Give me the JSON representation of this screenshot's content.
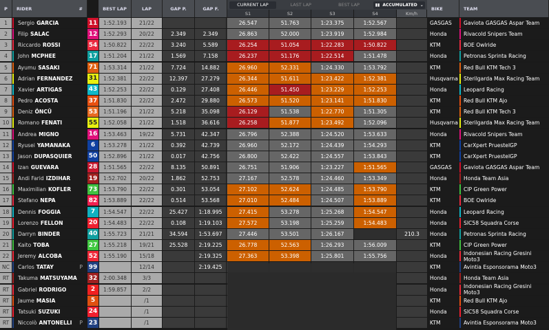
{
  "headers": {
    "p": "P",
    "rider": "RIDER",
    "num": "#",
    "best_lap": "BEST LAP",
    "lap": "LAP",
    "gap_p": "GAP P.",
    "gap_f": "GAP F.",
    "s1": "S1",
    "s2": "S2",
    "s3": "S3",
    "s4": "S4",
    "kmh": "Km/h",
    "bike": "BIKE",
    "team": "TEAM"
  },
  "tabs": {
    "current": "CURRENT LAP",
    "last": "LAST LAP",
    "best": "BEST LAP",
    "mode": "ACCUMULATED",
    "active": "current"
  },
  "sector_colors": {
    "g": "#666666",
    "r": "#a81c1f",
    "o": "#cc6000"
  },
  "rows": [
    {
      "p": "1",
      "first": "Sergio",
      "last": "GARCIA",
      "num": "11",
      "numc": "#d0102a",
      "bl": "1:52.193",
      "lap": "21/22",
      "gp": "",
      "gf": "",
      "s": [
        [
          "26.547",
          "g"
        ],
        [
          "51.763",
          "g"
        ],
        [
          "1:23.375",
          "g"
        ],
        [
          "1:52.567",
          "g"
        ]
      ],
      "kmh": "",
      "bike": "GASGAS",
      "team": "Gaviota GASGAS Aspar Team",
      "tc": "#d0102a"
    },
    {
      "p": "2",
      "first": "Filip",
      "last": "SALAC",
      "num": "12",
      "numc": "#e0107a",
      "bl": "1:52.293",
      "lap": "20/22",
      "gp": "2.349",
      "gf": "2.349",
      "s": [
        [
          "26.863",
          "g"
        ],
        [
          "52.000",
          "g"
        ],
        [
          "1:23.919",
          "g"
        ],
        [
          "1:52.984",
          "g"
        ]
      ],
      "kmh": "",
      "bike": "Honda",
      "team": "Rivacold Snipers Team",
      "tc": "#e0107a"
    },
    {
      "p": "3",
      "first": "Riccardo",
      "last": "ROSSI",
      "num": "54",
      "numc": "#ea2a40",
      "bl": "1:50.822",
      "lap": "22/22",
      "gp": "3.240",
      "gf": "5.589",
      "s": [
        [
          "26.254",
          "r"
        ],
        [
          "51.054",
          "r"
        ],
        [
          "1:22.283",
          "r"
        ],
        [
          "1:50.822",
          "r"
        ]
      ],
      "kmh": "",
      "bike": "KTM",
      "team": "BOE Owlride",
      "tc": "#ea2a40"
    },
    {
      "p": "4",
      "first": "John",
      "last": "MCPHEE",
      "num": "17",
      "numc": "#10a0a0",
      "bl": "1:51.204",
      "lap": "21/22",
      "gp": "1.569",
      "gf": "7.158",
      "s": [
        [
          "26.237",
          "r"
        ],
        [
          "51.176",
          "r"
        ],
        [
          "1:22.514",
          "r"
        ],
        [
          "1:51.478",
          "g"
        ]
      ],
      "kmh": "",
      "bike": "Honda",
      "team": "Petronas Sprinta Racing",
      "tc": "#10a0a0"
    },
    {
      "p": "5",
      "first": "Ayumu",
      "last": "SASAKI",
      "num": "71",
      "numc": "#e06010",
      "bl": "1:53.314",
      "lap": "21/22",
      "gp": "7.724",
      "gf": "14.882",
      "s": [
        [
          "26.960",
          "o"
        ],
        [
          "52.331",
          "o"
        ],
        [
          "1:24.330",
          "g"
        ],
        [
          "1:53.792",
          "g"
        ]
      ],
      "kmh": "",
      "bike": "KTM",
      "team": "Red Bull KTM Tech 3",
      "tc": "#e06010"
    },
    {
      "p": "6",
      "first": "Adrian",
      "last": "FERNANDEZ",
      "num": "31",
      "numc": "#e8f010",
      "bl": "1:52.381",
      "lap": "22/22",
      "gp": "12.397",
      "gf": "27.279",
      "s": [
        [
          "26.344",
          "o"
        ],
        [
          "51.611",
          "o"
        ],
        [
          "1:23.422",
          "o"
        ],
        [
          "1:52.381",
          "o"
        ]
      ],
      "kmh": "",
      "bike": "Husqvarna",
      "team": "Sterilgarda Max Racing Team",
      "tc": "#e8f010"
    },
    {
      "p": "7",
      "first": "Xavier",
      "last": "ARTIGAS",
      "num": "43",
      "numc": "#10b8c8",
      "bl": "1:52.253",
      "lap": "22/22",
      "gp": "0.129",
      "gf": "27.408",
      "s": [
        [
          "26.446",
          "o"
        ],
        [
          "51.450",
          "r"
        ],
        [
          "1:23.229",
          "o"
        ],
        [
          "1:52.253",
          "o"
        ]
      ],
      "kmh": "",
      "bike": "Honda",
      "team": "Leopard Racing",
      "tc": "#10b8c8"
    },
    {
      "p": "8",
      "first": "Pedro",
      "last": "ACOSTA",
      "num": "37",
      "numc": "#e85010",
      "bl": "1:51.830",
      "lap": "22/22",
      "gp": "2.472",
      "gf": "29.880",
      "s": [
        [
          "26.573",
          "o"
        ],
        [
          "51.520",
          "o"
        ],
        [
          "1:23.141",
          "o"
        ],
        [
          "1:51.830",
          "o"
        ]
      ],
      "kmh": "",
      "bike": "KTM",
      "team": "Red Bull KTM Ajo",
      "tc": "#e85010"
    },
    {
      "p": "9",
      "first": "Deniz",
      "last": "ÖNCÜ",
      "num": "53",
      "numc": "#e86a20",
      "bl": "1:51.196",
      "lap": "21/22",
      "gp": "5.218",
      "gf": "35.098",
      "s": [
        [
          "26.129",
          "r"
        ],
        [
          "51.538",
          "g"
        ],
        [
          "1:22.770",
          "o"
        ],
        [
          "1:51.305",
          "g"
        ]
      ],
      "kmh": "",
      "bike": "KTM",
      "team": "Red Bull KTM Tech 3",
      "tc": "#e06010"
    },
    {
      "p": "10",
      "first": "Romano",
      "last": "FENATI",
      "num": "55",
      "numc": "#e8f010",
      "bl": "1:52.058",
      "lap": "21/22",
      "gp": "1.518",
      "gf": "36.616",
      "s": [
        [
          "26.258",
          "r"
        ],
        [
          "51.877",
          "o"
        ],
        [
          "1:23.492",
          "o"
        ],
        [
          "1:52.096",
          "g"
        ]
      ],
      "kmh": "",
      "bike": "Husqvarna",
      "team": "Sterilgarda Max Racing Team",
      "tc": "#e8f010"
    },
    {
      "p": "11",
      "first": "Andrea",
      "last": "MIGNO",
      "num": "16",
      "numc": "#e0107a",
      "bl": "1:53.463",
      "lap": "19/22",
      "gp": "5.731",
      "gf": "42.347",
      "s": [
        [
          "26.796",
          "g"
        ],
        [
          "52.388",
          "g"
        ],
        [
          "1:24.520",
          "g"
        ],
        [
          "1:53.633",
          "g"
        ]
      ],
      "kmh": "",
      "bike": "Honda",
      "team": "Rivacold Snipers Team",
      "tc": "#e0107a"
    },
    {
      "p": "12",
      "first": "Ryusei",
      "last": "YAMANAKA",
      "num": "6",
      "numc": "#1040a0",
      "bl": "1:53.278",
      "lap": "21/22",
      "gp": "0.392",
      "gf": "42.739",
      "s": [
        [
          "26.960",
          "g"
        ],
        [
          "52.172",
          "g"
        ],
        [
          "1:24.439",
          "g"
        ],
        [
          "1:54.293",
          "g"
        ]
      ],
      "kmh": "",
      "bike": "KTM",
      "team": "CarXpert PruestelGP",
      "tc": "#1040a0"
    },
    {
      "p": "13",
      "first": "Jason",
      "last": "DUPASQUIER",
      "num": "50",
      "numc": "#1040a0",
      "bl": "1:52.896",
      "lap": "21/22",
      "gp": "0.017",
      "gf": "42.756",
      "s": [
        [
          "26.800",
          "g"
        ],
        [
          "52.422",
          "g"
        ],
        [
          "1:24.557",
          "g"
        ],
        [
          "1:53.843",
          "g"
        ]
      ],
      "kmh": "",
      "bike": "KTM",
      "team": "CarXpert PruestelGP",
      "tc": "#1040a0"
    },
    {
      "p": "14",
      "first": "Izan",
      "last": "GUEVARA",
      "num": "28",
      "numc": "#c81830",
      "bl": "1:51.565",
      "lap": "22/22",
      "gp": "8.135",
      "gf": "50.891",
      "s": [
        [
          "26.751",
          "g"
        ],
        [
          "51.906",
          "g"
        ],
        [
          "1:23.227",
          "g"
        ],
        [
          "1:51.565",
          "o"
        ]
      ],
      "kmh": "",
      "bike": "GASGAS",
      "team": "Gaviota GASGAS Aspar Team",
      "tc": "#d0102a"
    },
    {
      "p": "15",
      "first": "Andi Farid",
      "last": "IZDIHAR",
      "num": "19",
      "numc": "#a02020",
      "bl": "1:52.702",
      "lap": "20/22",
      "gp": "1.862",
      "gf": "52.753",
      "s": [
        [
          "27.167",
          "g"
        ],
        [
          "52.578",
          "g"
        ],
        [
          "1:24.460",
          "g"
        ],
        [
          "1:53.349",
          "g"
        ]
      ],
      "kmh": "",
      "bike": "Honda",
      "team": "Honda Team Asia",
      "tc": "#a02020"
    },
    {
      "p": "16",
      "first": "Maximilian",
      "last": "KOFLER",
      "num": "73",
      "numc": "#40c040",
      "bl": "1:53.790",
      "lap": "22/22",
      "gp": "0.301",
      "gf": "53.054",
      "s": [
        [
          "27.102",
          "o"
        ],
        [
          "52.624",
          "o"
        ],
        [
          "1:24.485",
          "g"
        ],
        [
          "1:53.790",
          "o"
        ]
      ],
      "kmh": "",
      "bike": "KTM",
      "team": "CIP Green Power",
      "tc": "#40c040"
    },
    {
      "p": "17",
      "first": "Stefano",
      "last": "NEPA",
      "num": "82",
      "numc": "#f02050",
      "bl": "1:53.889",
      "lap": "22/22",
      "gp": "0.514",
      "gf": "53.568",
      "s": [
        [
          "27.010",
          "o"
        ],
        [
          "52.484",
          "o"
        ],
        [
          "1:24.507",
          "g"
        ],
        [
          "1:53.889",
          "o"
        ]
      ],
      "kmh": "",
      "bike": "KTM",
      "team": "BOE Owlride",
      "tc": "#ea2a40"
    },
    {
      "p": "18",
      "first": "Dennis",
      "last": "FOGGIA",
      "num": "7",
      "numc": "#10b0c0",
      "bl": "1:54.547",
      "lap": "22/22",
      "gp": "25.427",
      "gf": "1:18.995",
      "s": [
        [
          "27.415",
          "o"
        ],
        [
          "53.278",
          "g"
        ],
        [
          "1:25.268",
          "g"
        ],
        [
          "1:54.547",
          "o"
        ]
      ],
      "kmh": "",
      "bike": "Honda",
      "team": "Leopard Racing",
      "tc": "#10b8c8"
    },
    {
      "p": "19",
      "first": "Lorenzo",
      "last": "FELLON",
      "num": "20",
      "numc": "#f02030",
      "bl": "1:54.483",
      "lap": "22/22",
      "gp": "0.108",
      "gf": "1:19.103",
      "s": [
        [
          "27.572",
          "o"
        ],
        [
          "53.198",
          "g"
        ],
        [
          "1:25.259",
          "g"
        ],
        [
          "1:54.483",
          "o"
        ]
      ],
      "kmh": "",
      "bike": "Honda",
      "team": "SIC58 Squadra Corse",
      "tc": "#f02030"
    },
    {
      "p": "20",
      "first": "Darryn",
      "last": "BINDER",
      "num": "40",
      "numc": "#10a0a0",
      "bl": "1:55.723",
      "lap": "21/21",
      "gp": "34.594",
      "gf": "1:53.697",
      "s": [
        [
          "27.446",
          "g"
        ],
        [
          "53.501",
          "g"
        ],
        [
          "1:26.167",
          "g"
        ],
        [
          "",
          "e"
        ]
      ],
      "progress": 0.65,
      "kmh": "210.3",
      "bike": "Honda",
      "team": "Petronas Sprinta Racing",
      "tc": "#10a0a0"
    },
    {
      "p": "21",
      "first": "Kaito",
      "last": "TOBA",
      "num": "27",
      "numc": "#40c840",
      "bl": "1:55.218",
      "lap": "19/21",
      "gp": "25.528",
      "gf": "2:19.225",
      "s": [
        [
          "26.778",
          "o"
        ],
        [
          "52.563",
          "o"
        ],
        [
          "1:26.293",
          "g"
        ],
        [
          "1:56.009",
          "g"
        ]
      ],
      "kmh": "",
      "bike": "KTM",
      "team": "CIP Green Power",
      "tc": "#40c040"
    },
    {
      "p": "22",
      "first": "Jeremy",
      "last": "ALCOBA",
      "num": "52",
      "numc": "#f02838",
      "bl": "1:55.190",
      "lap": "15/18",
      "gp": "",
      "gf": "2:19.325",
      "s": [
        [
          "27.363",
          "o"
        ],
        [
          "53.398",
          "o"
        ],
        [
          "1:25.801",
          "g"
        ],
        [
          "1:55.756",
          "g"
        ]
      ],
      "kmh": "",
      "bike": "Honda",
      "team": "Indonesian Racing Gresini Moto3",
      "tc": "#f02838"
    },
    {
      "p": "NC",
      "first": "Carlos",
      "last": "TATAY",
      "flag": "P",
      "num": "99",
      "numc": "#204080",
      "bl": "",
      "lap": "12/14",
      "gp": "",
      "gf": "2:19.425",
      "s": [
        [
          "",
          "e"
        ],
        [
          "",
          "e"
        ],
        [
          "",
          "e"
        ],
        [
          "",
          "e"
        ]
      ],
      "kmh": "",
      "bike": "KTM",
      "team": "Avintia Esponsorama Moto3",
      "tc": "#204080"
    },
    {
      "p": "RT",
      "first": "Takuma",
      "last": "MATSUYAMA",
      "num": "32",
      "numc": "#a02020",
      "bl": "2:00.348",
      "lap": "3/3",
      "gp": "",
      "gf": "",
      "bike": "Honda",
      "team": "Honda Team Asia",
      "tc": "#a02020"
    },
    {
      "p": "RT",
      "first": "Gabriel",
      "last": "RODRIGO",
      "num": "2",
      "numc": "#f02020",
      "bl": "1:59.857",
      "lap": "2/2",
      "gp": "",
      "gf": "",
      "bike": "Honda",
      "team": "Indonesian Racing Gresini Moto3",
      "tc": "#f02838"
    },
    {
      "p": "RT",
      "first": "Jaume",
      "last": "MASIA",
      "num": "5",
      "numc": "#e05010",
      "bl": "",
      "lap": "/1",
      "gp": "",
      "gf": "",
      "bike": "KTM",
      "team": "Red Bull KTM Ajo",
      "tc": "#e85010"
    },
    {
      "p": "RT",
      "first": "Tatsuki",
      "last": "SUZUKI",
      "num": "24",
      "numc": "#f02030",
      "bl": "",
      "lap": "/1",
      "gp": "",
      "gf": "",
      "bike": "Honda",
      "team": "SIC58 Squadra Corse",
      "tc": "#f02030"
    },
    {
      "p": "RT",
      "first": "Niccolò",
      "last": "ANTONELLI",
      "flag": "P",
      "num": "23",
      "numc": "#204080",
      "bl": "",
      "lap": "/1",
      "gp": "",
      "gf": "",
      "bike": "KTM",
      "team": "Avintia Esponsorama Moto3",
      "tc": "#204080"
    }
  ]
}
